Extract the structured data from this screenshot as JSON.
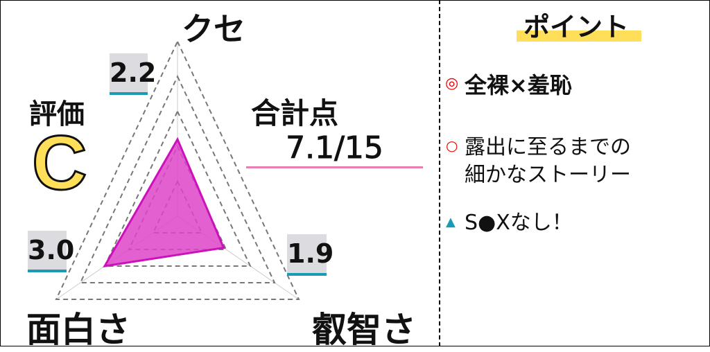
{
  "chart_data": {
    "type": "radar",
    "axes": [
      "クセ",
      "叡智さ",
      "面白さ"
    ],
    "values": [
      2.2,
      1.9,
      3.0
    ],
    "value_labels": [
      "2.2",
      "1.9",
      "3.0"
    ],
    "rmax": 5,
    "levels": 5,
    "fill_color": "#dd44c8",
    "stroke_color": "#cc11bb",
    "grid": true
  },
  "rating": {
    "label": "評価",
    "grade": "C",
    "grade_color": "#ffde59"
  },
  "total": {
    "label": "合計点",
    "value": "7.1/15",
    "underline_color": "#e87fb0"
  },
  "points": {
    "title": "ポイント",
    "title_highlight": "#ffde59",
    "items": [
      {
        "marker": "◎",
        "marker_color": "#e00",
        "text": "全裸×羞恥",
        "bold": true
      },
      {
        "marker": "○",
        "marker_color": "#e00",
        "text": "露出に至るまでの",
        "text2": "細かなストーリー"
      },
      {
        "marker": "▲",
        "marker_color": "#1a9bb3",
        "text": "S●Xなし！"
      }
    ]
  }
}
